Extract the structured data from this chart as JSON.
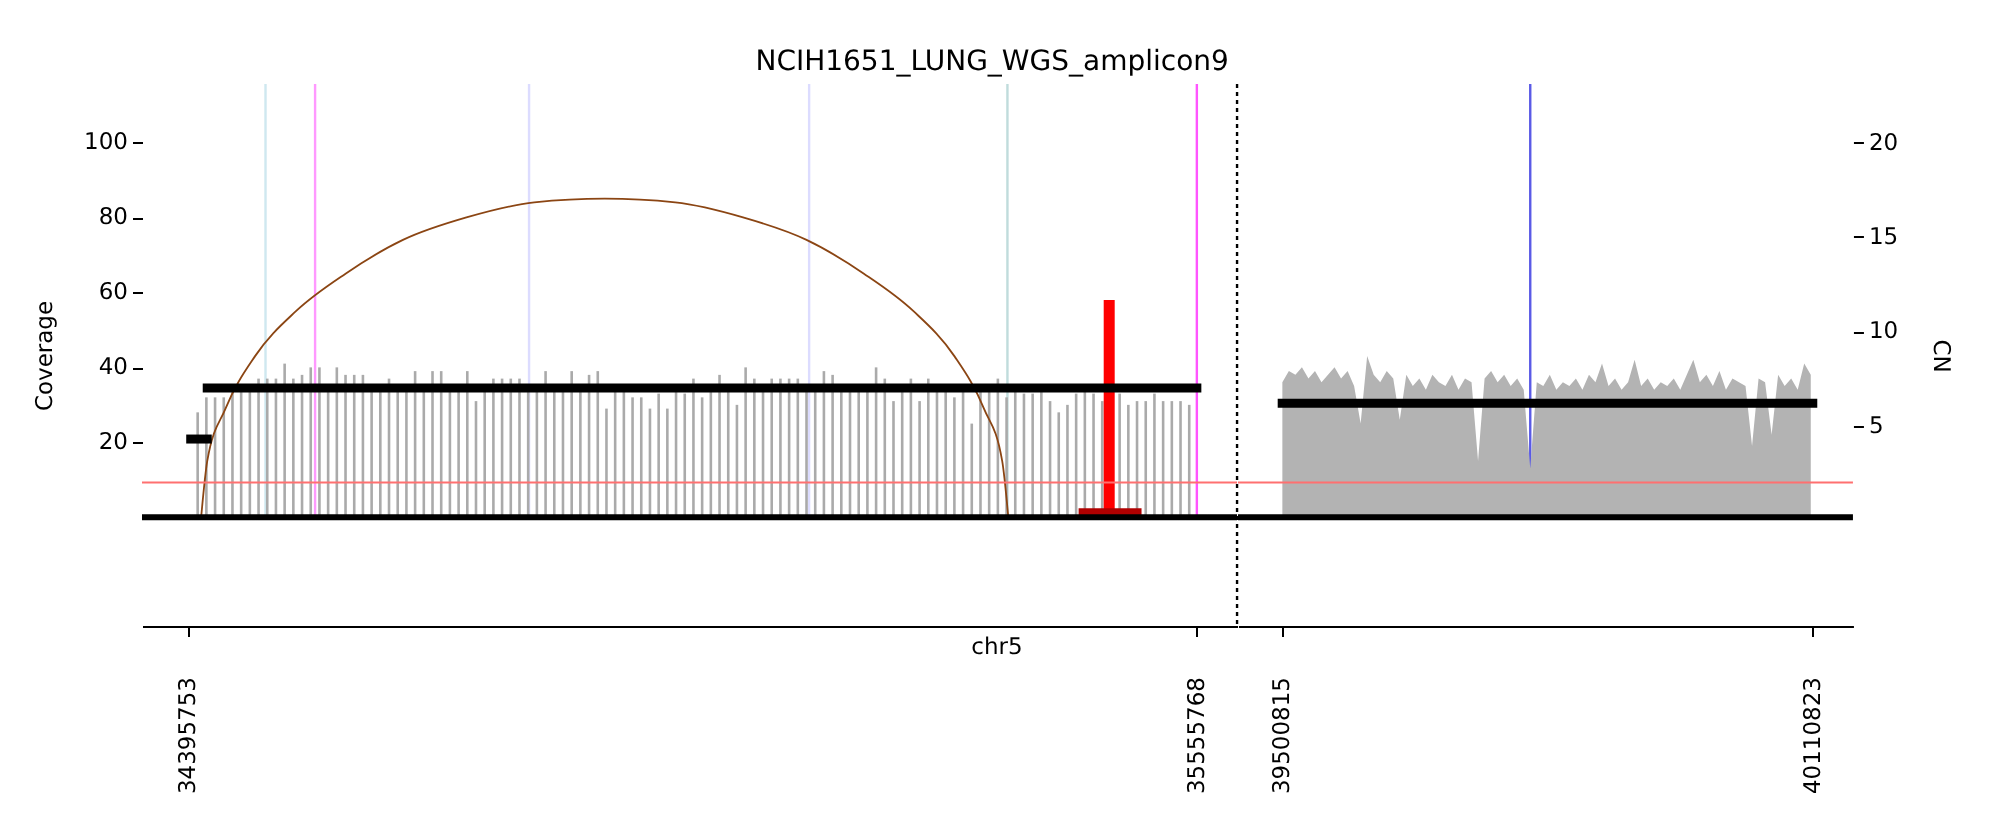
{
  "chart_data": [
    {
      "type": "bar",
      "title": "NCIH1651_LUNG_WGS_amplicon9",
      "xlabel": "chr5",
      "ylabel": "Coverage",
      "xlim": [
        34343000,
        35602000
      ],
      "xticks": [
        34395753,
        35555768
      ],
      "ylim": [
        -29,
        115.6
      ],
      "yticks": [
        20,
        40,
        60,
        80,
        100
      ],
      "y2lim": [
        -5.6,
        23.1
      ],
      "tick_labels": [
        "x",
        "y"
      ],
      "series": [
        {
          "color": "#aaaaaa",
          "x": [
            34407000,
            34417000,
            34427000,
            34437000,
            34447000,
            34457000,
            34467000,
            34477000,
            34487000,
            34497000,
            34507000,
            34517000,
            34527000,
            34537000,
            34547000,
            34557000,
            34567000,
            34577000,
            34587000,
            34597000,
            34607000,
            34617000,
            34627000,
            34637000,
            34647000,
            34657000,
            34667000,
            34677000,
            34687000,
            34697000,
            34707000,
            34717000,
            34727000,
            34737000,
            34747000,
            34757000,
            34767000,
            34777000,
            34787000,
            34797000,
            34807000,
            34817000,
            34827000,
            34837000,
            34847000,
            34857000,
            34867000,
            34877000,
            34887000,
            34897000,
            34907000,
            34917000,
            34927000,
            34937000,
            34947000,
            34957000,
            34967000,
            34977000,
            34987000,
            34997000,
            35007000,
            35017000,
            35027000,
            35037000,
            35047000,
            35057000,
            35067000,
            35077000,
            35087000,
            35097000,
            35107000,
            35117000,
            35127000,
            35137000,
            35147000,
            35157000,
            35167000,
            35177000,
            35187000,
            35197000,
            35207000,
            35217000,
            35227000,
            35237000,
            35247000,
            35257000,
            35267000,
            35277000,
            35287000,
            35297000,
            35307000,
            35317000,
            35327000,
            35337000,
            35347000,
            35357000,
            35367000,
            35377000,
            35387000,
            35397000,
            35407000,
            35417000,
            35427000,
            35437000,
            35447000,
            35457000,
            35467000,
            35477000,
            35487000,
            35497000,
            35507000,
            35517000,
            35527000,
            35537000,
            35547000
          ],
          "values": [
            28,
            32,
            32,
            32,
            34,
            34,
            34,
            37,
            37,
            37,
            41,
            37,
            38,
            40,
            40,
            34,
            40,
            38,
            38,
            38,
            34,
            34,
            37,
            34,
            34,
            39,
            34,
            39,
            39,
            34,
            34,
            39,
            31,
            34,
            37,
            37,
            37,
            37,
            34,
            34,
            39,
            34,
            34,
            39,
            34,
            38,
            39,
            29,
            34,
            34,
            32,
            32,
            29,
            33,
            29,
            34,
            33,
            37,
            32,
            34,
            38,
            34,
            30,
            40,
            37,
            34,
            37,
            37,
            37,
            37,
            34,
            34,
            39,
            38,
            34,
            34,
            34,
            34,
            40,
            37,
            31,
            34,
            37,
            31,
            37,
            34,
            34,
            32,
            34,
            25,
            34,
            34,
            37,
            32,
            34,
            33,
            33,
            34,
            31,
            28,
            30,
            33,
            34,
            33,
            31,
            null,
            33,
            30,
            31,
            31,
            33,
            31,
            31,
            31,
            30
          ]
        },
        {
          "color": "#ff0000",
          "x": [
            35455000
          ],
          "values": [
            58
          ]
        },
        {
          "type": "line",
          "color": "#8b4513",
          "x": [
            34411000,
            34418000,
            34439000,
            34473000,
            34520000,
            34577000,
            34643000,
            34716000,
            34794000,
            34875000,
            34956000,
            35034000,
            35107000,
            35173000,
            35230000,
            35277000,
            35311000,
            35332000,
            35339000
          ],
          "values": [
            0,
            15,
            29,
            43,
            55,
            65,
            74,
            80,
            84,
            85,
            84,
            80,
            74,
            65,
            55,
            43,
            29,
            15,
            0
          ]
        },
        {
          "type": "line",
          "axis": "y2",
          "color": "#000000",
          "x": [
            34399000,
            34418000
          ],
          "values": [
            4.3,
            4.3
          ]
        },
        {
          "type": "line",
          "axis": "y2",
          "color": "#000000",
          "x": [
            34418000,
            35555768
          ],
          "values": [
            7.0,
            7.0
          ]
        },
        {
          "type": "line",
          "axis": "y2",
          "color": "#b00000",
          "x": [
            35425000,
            35487000
          ],
          "values": [
            0.4,
            0.4
          ]
        }
      ],
      "ref_lines": [
        {
          "axis": "x",
          "value": 34485000,
          "color": "#cfe8f0"
        },
        {
          "axis": "x",
          "value": 34542000,
          "color": "#ff99ff"
        },
        {
          "axis": "x",
          "value": 34788000,
          "color": "#dcdcff"
        },
        {
          "axis": "x",
          "value": 35110000,
          "color": "#dcdcff"
        },
        {
          "axis": "x",
          "value": 35338000,
          "color": "#c0dcdc"
        },
        {
          "axis": "x",
          "value": 35555768,
          "color": "#ff55ff"
        },
        {
          "axis": "x",
          "value": 35602000,
          "color": "#000000",
          "line_style": "dotted"
        },
        {
          "axis": "y2",
          "value": 2,
          "color": "#ff7070"
        },
        {
          "axis": "y",
          "value": 0,
          "color": "#000000"
        }
      ]
    },
    {
      "type": "area",
      "y2label": "CN",
      "xlim": [
        39450000,
        40157000
      ],
      "xticks": [
        39500815,
        40110823
      ],
      "ylim": [
        -29,
        115.6
      ],
      "y2lim": [
        -5.6,
        23.1
      ],
      "y2ticks": [
        5,
        10,
        15,
        20
      ],
      "tick_labels": [
        "x",
        "y2"
      ],
      "series": [
        {
          "color": "#b3b3b3",
          "x": [
            39501000,
            39508500,
            39516000,
            39523500,
            39531000,
            39538500,
            39546000,
            39553500,
            39561000,
            39568500,
            39576000,
            39583500,
            39591000,
            39598500,
            39606000,
            39613500,
            39621000,
            39628500,
            39636000,
            39643500,
            39651000,
            39658500,
            39666000,
            39673500,
            39681000,
            39688500,
            39696000,
            39703500,
            39711000,
            39718500,
            39726000,
            39733500,
            39741000,
            39748500,
            39756000,
            39763500,
            39771000,
            39778500,
            39786000,
            39793500,
            39801000,
            39808500,
            39816000,
            39823500,
            39831000,
            39838500,
            39846000,
            39853500,
            39861000,
            39868500,
            39876000,
            39883500,
            39891000,
            39898500,
            39906000,
            39913500,
            39921000,
            39928500,
            39936000,
            39943500,
            39951000,
            39958500,
            39966000,
            39973500,
            39981000,
            39988500,
            39996000,
            40003500,
            40011000,
            40018500,
            40026000,
            40033500,
            40041000,
            40048500,
            40056000,
            40063500,
            40071000,
            40078500,
            40086000,
            40093500,
            40101000,
            40108500
          ],
          "values": [
            36,
            39,
            38,
            40,
            37,
            39,
            36,
            38,
            40,
            37,
            39,
            35,
            25,
            43,
            38,
            36,
            39,
            37,
            26,
            38,
            35,
            37,
            34,
            38,
            36,
            35,
            38,
            34,
            37,
            36,
            15,
            37,
            39,
            36,
            38,
            35,
            37,
            34,
            13,
            36,
            35,
            38,
            34,
            36,
            35,
            37,
            34,
            38,
            36,
            41,
            35,
            37,
            34,
            36,
            42,
            35,
            37,
            34,
            36,
            35,
            37,
            34,
            38,
            42,
            36,
            38,
            35,
            39,
            34,
            37,
            36,
            35,
            19,
            37,
            36,
            22,
            38,
            35,
            37,
            34,
            41,
            38
          ]
        },
        {
          "type": "line",
          "axis": "y2",
          "color": "#000000",
          "x": [
            39500815,
            40110823
          ],
          "values": [
            6.2,
            6.2
          ]
        }
      ],
      "ref_lines": [
        {
          "axis": "x",
          "value": 39786000,
          "color": "#5a5ae6"
        },
        {
          "axis": "y2",
          "value": 2,
          "color": "#ff7070"
        },
        {
          "axis": "y",
          "value": 0,
          "color": "#000000"
        }
      ]
    }
  ]
}
